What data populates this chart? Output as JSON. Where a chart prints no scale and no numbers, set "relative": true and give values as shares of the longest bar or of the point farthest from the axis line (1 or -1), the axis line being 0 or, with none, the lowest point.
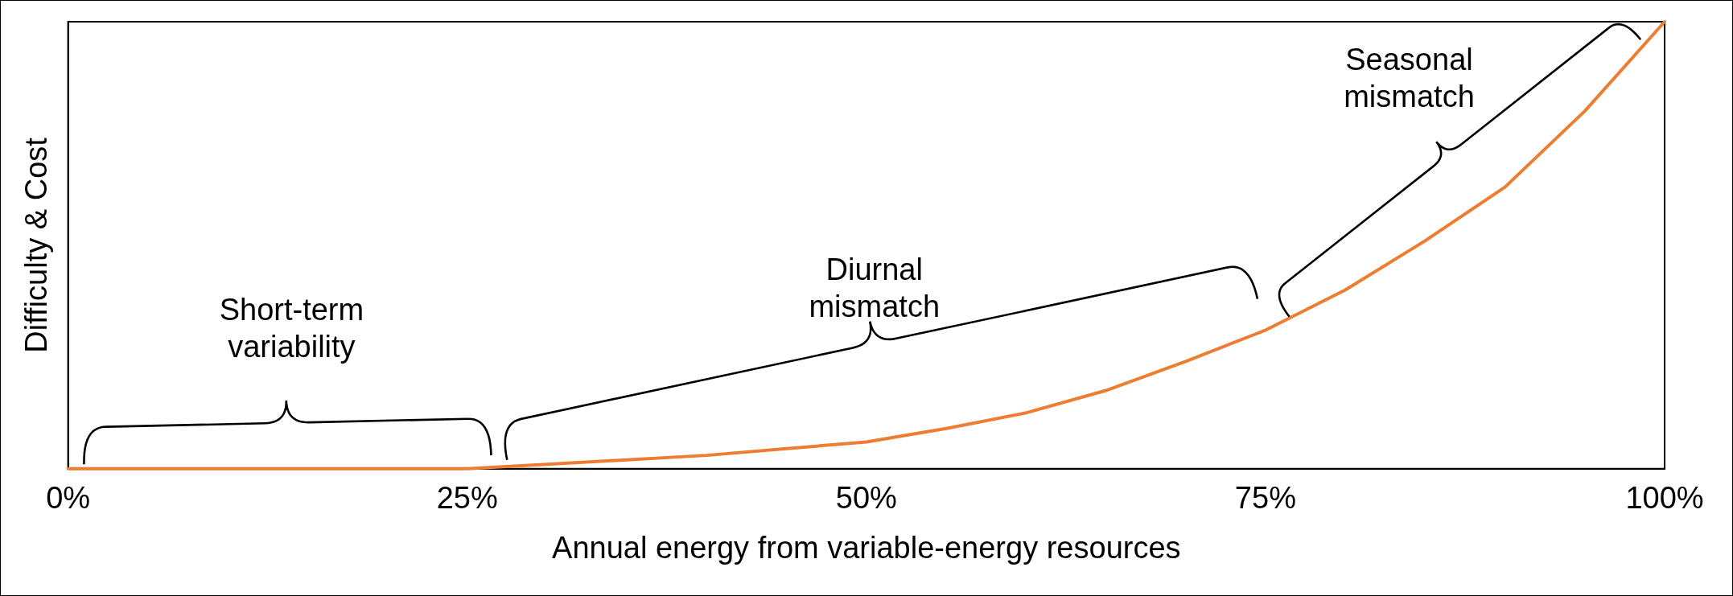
{
  "chart_data": {
    "type": "line",
    "relative": true,
    "xlabel": "Annual energy from variable-energy resources",
    "ylabel": "Difficulty & Cost",
    "xlim": [
      0,
      100
    ],
    "xticks": [
      {
        "value": 0,
        "label": "0%"
      },
      {
        "value": 25,
        "label": "25%"
      },
      {
        "value": 50,
        "label": "50%"
      },
      {
        "value": 75,
        "label": "75%"
      },
      {
        "value": 100,
        "label": "100%"
      }
    ],
    "marker": "none",
    "series": [
      {
        "color": "#ed7d31",
        "x": [
          0,
          10,
          20,
          25,
          30,
          35,
          40,
          45,
          50,
          55,
          60,
          65,
          70,
          75,
          80,
          85,
          90,
          95,
          100
        ],
        "values": [
          0,
          0,
          0,
          0,
          0.01,
          0.02,
          0.03,
          0.045,
          0.06,
          0.09,
          0.125,
          0.175,
          0.24,
          0.31,
          0.4,
          0.51,
          0.63,
          0.8,
          1
        ]
      }
    ],
    "annotations": [
      "Short-term variability",
      "Diurnal mismatch",
      "Seasonal mismatch"
    ]
  }
}
